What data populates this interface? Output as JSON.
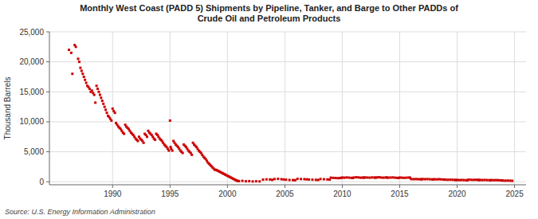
{
  "chart_data": {
    "type": "scatter",
    "title": "Monthly West Coast (PADD 5) Shipments by Pipeline, Tanker, and Barge to Other PADDs of\nCrude Oil and Petroleum Products",
    "ylabel": "Thousand Barrels",
    "source": "Source: U.S. Energy Information Administration",
    "color": "#cc0000",
    "marker": "square",
    "grid": true,
    "xlim": [
      1984.5,
      2026
    ],
    "ylim": [
      -500,
      25000
    ],
    "xticks": [
      1990,
      1995,
      2000,
      2005,
      2010,
      2015,
      2020,
      2025
    ],
    "yticks": [
      0,
      {
        "value": 5000,
        "label": "5,000"
      },
      {
        "value": 10000,
        "label": "10,000"
      },
      {
        "value": 15000,
        "label": "15,000"
      },
      {
        "value": 20000,
        "label": "20,000"
      },
      {
        "value": 25000,
        "label": "25,000"
      }
    ],
    "x": [
      1986.2,
      1986.4,
      1986.5,
      1986.7,
      1986.8,
      1987.0,
      1987.1,
      1987.2,
      1987.3,
      1987.4,
      1987.5,
      1987.6,
      1987.7,
      1987.8,
      1987.9,
      1988.0,
      1988.1,
      1988.2,
      1988.3,
      1988.4,
      1988.5,
      1988.6,
      1988.7,
      1988.8,
      1988.9,
      1989.0,
      1989.1,
      1989.2,
      1989.3,
      1989.4,
      1989.5,
      1989.6,
      1989.7,
      1989.8,
      1989.9,
      1990.0,
      1990.1,
      1990.2,
      1990.3,
      1990.4,
      1990.5,
      1990.6,
      1990.7,
      1990.8,
      1990.9,
      1991.0,
      1991.1,
      1991.2,
      1991.3,
      1991.4,
      1991.5,
      1991.6,
      1991.7,
      1991.8,
      1991.9,
      1992.0,
      1992.1,
      1992.2,
      1992.3,
      1992.4,
      1992.5,
      1992.6,
      1992.7,
      1992.8,
      1992.9,
      1993.0,
      1993.1,
      1993.2,
      1993.3,
      1993.4,
      1993.5,
      1993.6,
      1993.7,
      1993.8,
      1993.9,
      1994.0,
      1994.1,
      1994.2,
      1994.3,
      1994.4,
      1994.5,
      1994.6,
      1994.7,
      1994.8,
      1994.9,
      1995.0,
      1995.05,
      1995.1,
      1995.2,
      1995.3,
      1995.4,
      1995.5,
      1995.6,
      1995.7,
      1995.8,
      1995.9,
      1996.0,
      1996.1,
      1996.2,
      1996.3,
      1996.4,
      1996.5,
      1996.6,
      1996.7,
      1996.8,
      1996.9,
      1997.0,
      1997.1,
      1997.2,
      1997.3,
      1997.4,
      1997.5,
      1997.6,
      1997.7,
      1997.8,
      1997.9,
      1998.0,
      1998.1,
      1998.2,
      1998.3,
      1998.4,
      1998.5,
      1998.6,
      1998.7,
      1998.8,
      1998.9,
      1999.0,
      1999.1,
      1999.2,
      1999.3,
      1999.4,
      1999.5,
      1999.6,
      1999.7,
      1999.8,
      1999.9,
      2000.0,
      2000.1,
      2000.2,
      2000.3,
      2000.4,
      2000.5,
      2000.6,
      2000.7,
      2000.8,
      2000.9,
      2001.0,
      2001.3,
      2001.6,
      2001.9,
      2002.2,
      2002.5,
      2002.8,
      2003.1,
      2003.4,
      2003.7,
      2003.9,
      2004.1,
      2004.4,
      2004.7,
      2004.9,
      2005.1,
      2005.4,
      2005.7,
      2005.9,
      2006.1,
      2006.4,
      2006.7,
      2006.9,
      2007.1,
      2007.4,
      2007.7,
      2007.9,
      2008.1,
      2008.4,
      2008.7,
      2008.9,
      2009.0,
      2009.2,
      2009.4,
      2009.6,
      2009.8,
      2009.9,
      2010.0,
      2010.2,
      2010.4,
      2010.6,
      2010.8,
      2010.9,
      2011.0,
      2011.2,
      2011.4,
      2011.6,
      2011.8,
      2011.9,
      2012.0,
      2012.2,
      2012.4,
      2012.6,
      2012.8,
      2012.9,
      2013.0,
      2013.2,
      2013.4,
      2013.6,
      2013.8,
      2013.9,
      2014.0,
      2014.2,
      2014.4,
      2014.6,
      2014.8,
      2014.9,
      2015.0,
      2015.2,
      2015.4,
      2015.6,
      2015.8,
      2015.9,
      2016.0,
      2016.2,
      2016.4,
      2016.6,
      2016.8,
      2016.9,
      2017.0,
      2017.2,
      2017.4,
      2017.6,
      2017.8,
      2017.9,
      2018.0,
      2018.2,
      2018.4,
      2018.6,
      2018.8,
      2018.9,
      2019.0,
      2019.2,
      2019.4,
      2019.6,
      2019.8,
      2019.9,
      2020.0,
      2020.2,
      2020.4,
      2020.6,
      2020.8,
      2020.9,
      2021.0,
      2021.2,
      2021.4,
      2021.6,
      2021.8,
      2021.9,
      2022.0,
      2022.2,
      2022.4,
      2022.6,
      2022.8,
      2022.9,
      2023.0,
      2023.2,
      2023.4,
      2023.6,
      2023.8,
      2023.9,
      2024.0,
      2024.2,
      2024.4,
      2024.6,
      2024.8
    ],
    "values": [
      22000,
      21500,
      18000,
      22800,
      22500,
      20500,
      20000,
      19000,
      18500,
      18000,
      17500,
      17000,
      16500,
      16000,
      15800,
      15500,
      15000,
      15200,
      14800,
      14500,
      13200,
      16000,
      15500,
      15000,
      14500,
      14000,
      13500,
      13000,
      12500,
      12000,
      11500,
      11000,
      10800,
      10500,
      10200,
      12200,
      11800,
      11500,
      9800,
      9500,
      9200,
      9000,
      8800,
      8500,
      8200,
      8000,
      9500,
      9200,
      9000,
      8800,
      8500,
      8200,
      8000,
      7800,
      7500,
      7200,
      7000,
      6800,
      7500,
      7200,
      7000,
      6800,
      6500,
      8000,
      7800,
      7500,
      8500,
      8200,
      8000,
      7800,
      7500,
      7200,
      7000,
      8000,
      7800,
      7500,
      7200,
      7000,
      6800,
      6500,
      6200,
      6000,
      5800,
      5500,
      5200,
      10200,
      5800,
      5500,
      5200,
      6800,
      6500,
      6200,
      6000,
      5800,
      5500,
      5200,
      5000,
      4800,
      6200,
      6000,
      5800,
      5500,
      5200,
      5000,
      4800,
      4500,
      6500,
      6200,
      6000,
      5800,
      5500,
      5200,
      5000,
      4800,
      4500,
      4200,
      4000,
      3800,
      3500,
      3200,
      3000,
      2800,
      2600,
      2400,
      2200,
      2000,
      2000,
      1900,
      1800,
      1700,
      1600,
      1500,
      1400,
      1300,
      1200,
      1100,
      1000,
      900,
      800,
      700,
      600,
      500,
      400,
      300,
      200,
      150,
      100,
      150,
      80,
      100,
      50,
      80,
      60,
      350,
      400,
      380,
      320,
      450,
      480,
      420,
      380,
      350,
      300,
      280,
      260,
      480,
      450,
      430,
      400,
      380,
      350,
      320,
      300,
      450,
      420,
      390,
      360,
      680,
      650,
      630,
      600,
      620,
      650,
      700,
      680,
      720,
      680,
      650,
      630,
      700,
      750,
      720,
      680,
      700,
      680,
      720,
      700,
      680,
      720,
      700,
      680,
      720,
      750,
      700,
      680,
      720,
      700,
      680,
      700,
      720,
      680,
      650,
      630,
      700,
      680,
      650,
      680,
      700,
      680,
      450,
      430,
      450,
      430,
      420,
      400,
      450,
      430,
      450,
      420,
      400,
      380,
      420,
      400,
      420,
      400,
      380,
      360,
      350,
      330,
      350,
      330,
      310,
      290,
      300,
      280,
      300,
      280,
      260,
      250,
      350,
      330,
      310,
      330,
      310,
      290,
      300,
      280,
      300,
      280,
      260,
      250,
      280,
      260,
      280,
      260,
      240,
      220,
      200,
      180,
      200,
      180,
      160
    ]
  }
}
